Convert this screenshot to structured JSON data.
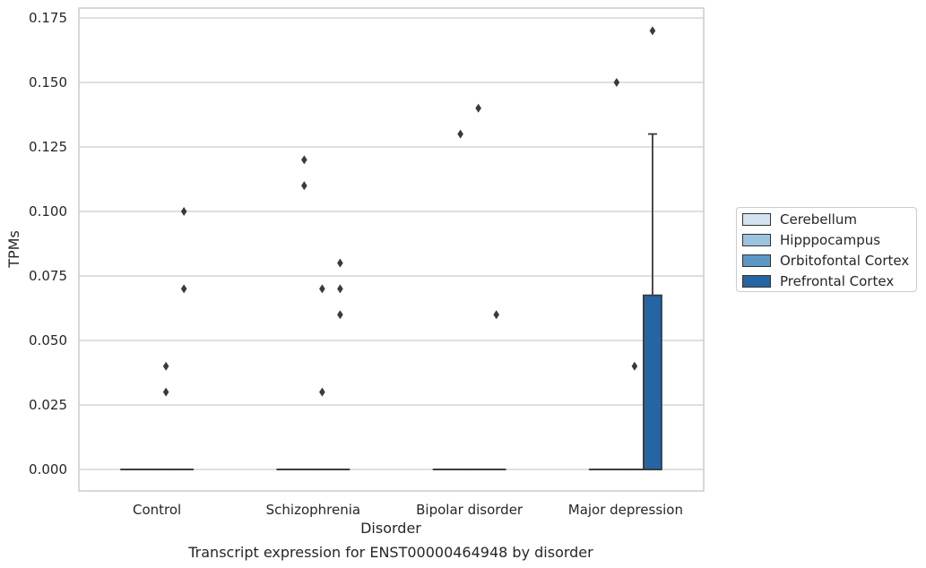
{
  "chart_data": {
    "type": "box",
    "title": "Transcript expression for ENST00000464948 by disorder",
    "xlabel": "Disorder",
    "ylabel": "TPMs",
    "ylim": [
      -0.0085,
      0.1785
    ],
    "yticks": [
      "0.000",
      "0.025",
      "0.050",
      "0.075",
      "0.100",
      "0.125",
      "0.150",
      "0.175"
    ],
    "categories": [
      "Control",
      "Schizophrenia",
      "Bipolar disorder",
      "Major depression"
    ],
    "grid": true,
    "legend_position": "right",
    "series": [
      {
        "name": "Cerebellum",
        "color": "#d4e3f1",
        "boxes": [
          {
            "q1": 0,
            "median": 0,
            "q3": 0,
            "whisker_low": 0,
            "whisker_high": 0,
            "outliers": []
          },
          {
            "q1": 0,
            "median": 0,
            "q3": 0,
            "whisker_low": 0,
            "whisker_high": 0,
            "outliers": []
          },
          {
            "q1": 0,
            "median": 0,
            "q3": 0,
            "whisker_low": 0,
            "whisker_high": 0,
            "outliers": []
          },
          {
            "q1": 0,
            "median": 0,
            "q3": 0,
            "whisker_low": 0,
            "whisker_high": 0,
            "outliers": []
          }
        ]
      },
      {
        "name": "Hipppocampus",
        "color": "#9cc3df",
        "boxes": [
          {
            "q1": 0,
            "median": 0,
            "q3": 0,
            "whisker_low": 0,
            "whisker_high": 0,
            "outliers": []
          },
          {
            "q1": 0,
            "median": 0,
            "q3": 0,
            "whisker_low": 0,
            "whisker_high": 0,
            "outliers": [
              0.12,
              0.11
            ]
          },
          {
            "q1": 0,
            "median": 0,
            "q3": 0,
            "whisker_low": 0,
            "whisker_high": 0,
            "outliers": [
              0.13
            ]
          },
          {
            "q1": 0,
            "median": 0,
            "q3": 0,
            "whisker_low": 0,
            "whisker_high": 0,
            "outliers": [
              0.15
            ]
          }
        ]
      },
      {
        "name": "Orbitofontal Cortex",
        "color": "#5b98c6",
        "boxes": [
          {
            "q1": 0,
            "median": 0,
            "q3": 0,
            "whisker_low": 0,
            "whisker_high": 0,
            "outliers": [
              0.04,
              0.03
            ]
          },
          {
            "q1": 0,
            "median": 0,
            "q3": 0,
            "whisker_low": 0,
            "whisker_high": 0,
            "outliers": [
              0.07,
              0.03
            ]
          },
          {
            "q1": 0,
            "median": 0,
            "q3": 0,
            "whisker_low": 0,
            "whisker_high": 0,
            "outliers": [
              0.14
            ]
          },
          {
            "q1": 0,
            "median": 0,
            "q3": 0,
            "whisker_low": 0,
            "whisker_high": 0,
            "outliers": [
              0.04
            ]
          }
        ]
      },
      {
        "name": "Prefrontal Cortex",
        "color": "#2565a4",
        "boxes": [
          {
            "q1": 0,
            "median": 0,
            "q3": 0,
            "whisker_low": 0,
            "whisker_high": 0,
            "outliers": [
              0.1,
              0.07
            ]
          },
          {
            "q1": 0,
            "median": 0,
            "q3": 0,
            "whisker_low": 0,
            "whisker_high": 0,
            "outliers": [
              0.08,
              0.07,
              0.06
            ]
          },
          {
            "q1": 0,
            "median": 0,
            "q3": 0,
            "whisker_low": 0,
            "whisker_high": 0,
            "outliers": [
              0.06
            ]
          },
          {
            "q1": 0,
            "median": 0,
            "q3": 0.0675,
            "whisker_low": 0,
            "whisker_high": 0.13,
            "outliers": [
              0.17
            ]
          }
        ]
      }
    ]
  }
}
